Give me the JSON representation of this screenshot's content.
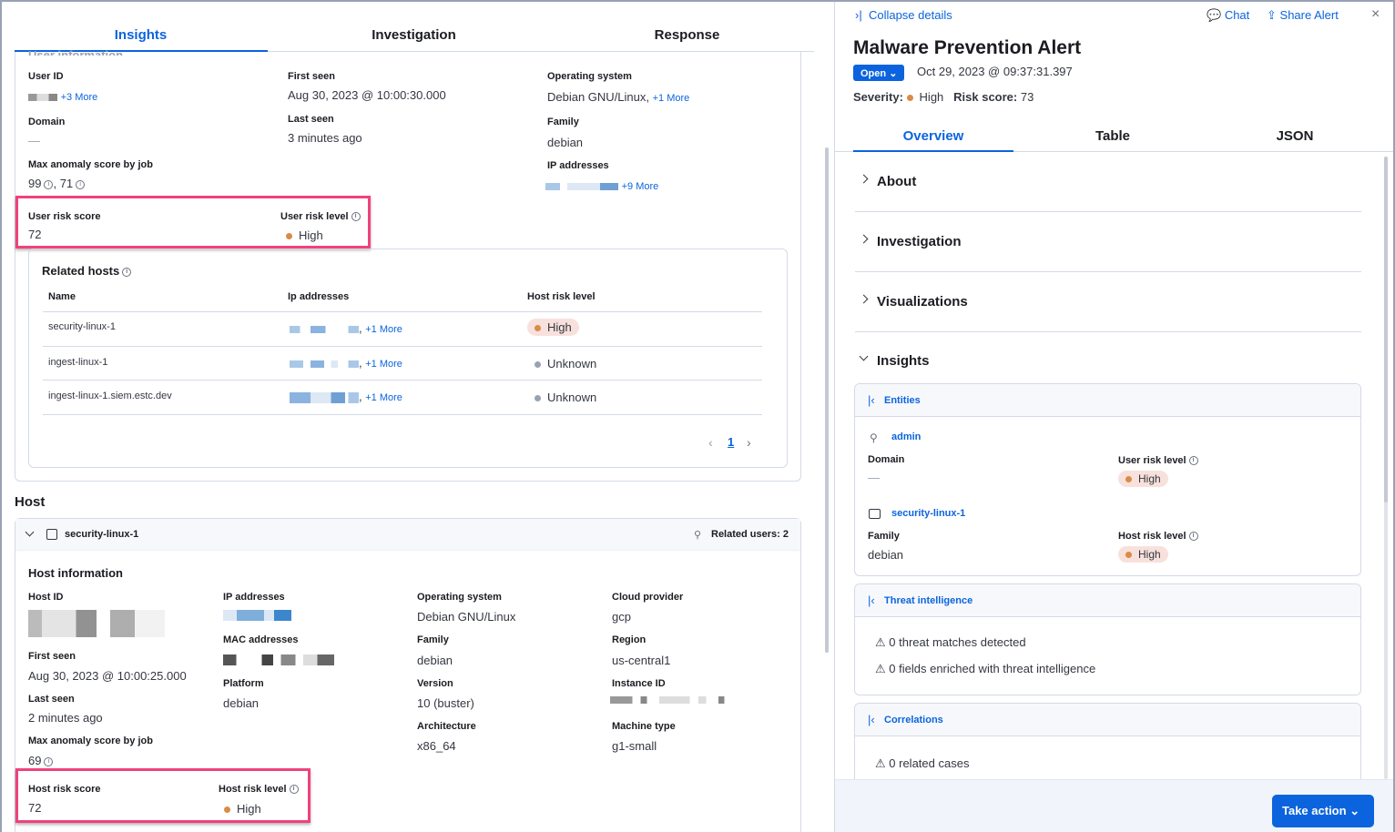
{
  "left": {
    "tabs": [
      "Insights",
      "Investigation",
      "Response"
    ],
    "user": {
      "section_cut": "User information",
      "user_id_label": "User ID",
      "user_id_more": "+3 More",
      "first_seen_label": "First seen",
      "first_seen": "Aug 30, 2023 @ 10:00:30.000",
      "os_label": "Operating system",
      "os": "Debian GNU/Linux,",
      "os_more": "+1 More",
      "domain_label": "Domain",
      "domain": "—",
      "last_seen_label": "Last seen",
      "last_seen": "3 minutes ago",
      "family_label": "Family",
      "family": "debian",
      "anomaly_label": "Max anomaly score by job",
      "anomaly_1": "99",
      "anomaly_2": ", 71",
      "ip_label": "IP addresses",
      "ip_more": "+9 More",
      "risk_score_label": "User risk score",
      "risk_score": "72",
      "risk_level_label": "User risk level",
      "risk_level": "High"
    },
    "related_hosts": {
      "title": "Related hosts",
      "columns": [
        "Name",
        "Ip addresses",
        "Host risk level"
      ],
      "rows": [
        {
          "name": "security-linux-1",
          "more": "+1 More",
          "level": "High"
        },
        {
          "name": "ingest-linux-1",
          "more": "+1 More",
          "level": "Unknown"
        },
        {
          "name": "ingest-linux-1.siem.estc.dev",
          "more": "+1 More",
          "level": "Unknown"
        }
      ],
      "page": "1"
    },
    "host": {
      "heading": "Host",
      "name": "security-linux-1",
      "related_users": "Related users: 2",
      "info_title": "Host information",
      "host_id_label": "Host ID",
      "ip_label": "IP addresses",
      "os_label": "Operating system",
      "os": "Debian GNU/Linux",
      "cloud_label": "Cloud provider",
      "cloud": "gcp",
      "mac_label": "MAC addresses",
      "family_label": "Family",
      "family": "debian",
      "region_label": "Region",
      "region": "us-central1",
      "first_seen_label": "First seen",
      "first_seen": "Aug 30, 2023 @ 10:00:25.000",
      "platform_label": "Platform",
      "platform": "debian",
      "version_label": "Version",
      "version": "10 (buster)",
      "instance_label": "Instance ID",
      "last_seen_label": "Last seen",
      "last_seen": "2 minutes ago",
      "arch_label": "Architecture",
      "arch": "x86_64",
      "machine_label": "Machine type",
      "machine": "g1-small",
      "anomaly_label": "Max anomaly score by job",
      "anomaly": "69",
      "risk_score_label": "Host risk score",
      "risk_score": "72",
      "risk_level_label": "Host risk level",
      "risk_level": "High"
    }
  },
  "right": {
    "collapse": "Collapse details",
    "chat": "Chat",
    "share": "Share Alert",
    "title": "Malware Prevention Alert",
    "status": "Open",
    "timestamp": "Oct 29, 2023 @ 09:37:31.397",
    "severity_label": "Severity:",
    "severity": "High",
    "risk_label": "Risk score:",
    "risk": "73",
    "tabs": [
      "Overview",
      "Table",
      "JSON"
    ],
    "sections": [
      "About",
      "Investigation",
      "Visualizations",
      "Insights"
    ],
    "entities": {
      "title": "Entities",
      "user": "admin",
      "domain_label": "Domain",
      "domain": "—",
      "user_risk_label": "User risk level",
      "user_risk": "High",
      "host": "security-linux-1",
      "family_label": "Family",
      "family": "debian",
      "host_risk_label": "Host risk level",
      "host_risk": "High"
    },
    "threat": {
      "title": "Threat intelligence",
      "items": [
        "0 threat matches detected",
        "0 fields enriched with threat intelligence"
      ]
    },
    "correlations": {
      "title": "Correlations",
      "items": [
        "0 related cases"
      ]
    },
    "take_action": "Take action"
  },
  "colors": {
    "accent": "#0b64dd",
    "high": "#da8b45",
    "highlight": "#f0427b"
  }
}
